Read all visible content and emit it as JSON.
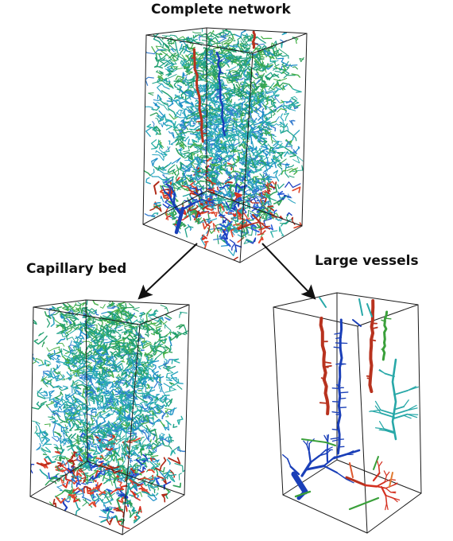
{
  "labels": {
    "complete_network": "Complete network",
    "capillary_bed": "Capillary bed",
    "large_vessels": "Large vessels"
  },
  "colors": {
    "box_edge": "#1a1a1a",
    "capillary_palette": [
      "#1f9e6e",
      "#22a38a",
      "#2bb0a8",
      "#2aa5c0",
      "#1e8fc8",
      "#3a7fd0",
      "#2ea05a",
      "#48b04a"
    ],
    "low_palette": [
      "#1c3fc0",
      "#2a5ad8",
      "#d83020",
      "#b02a18",
      "#2ea05a",
      "#1fa3a0",
      "#e04a30"
    ],
    "artery": "#b8321e",
    "vein": "#1a3fb8",
    "teal_vessel": "#28a8a8",
    "green_vessel": "#3aa03a",
    "arrow": "#111111"
  }
}
